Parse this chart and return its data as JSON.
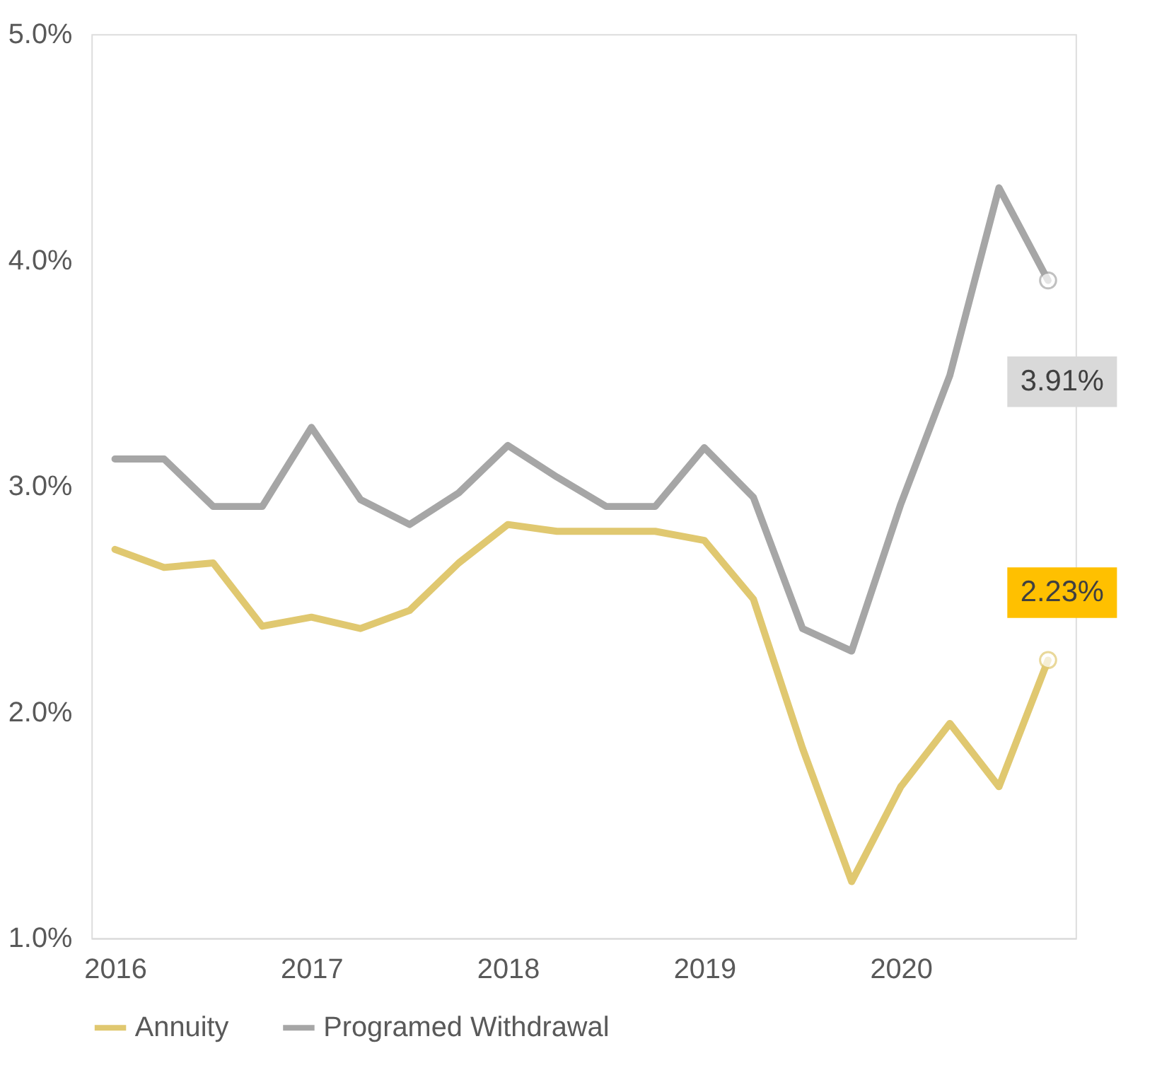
{
  "chart_data": {
    "type": "line",
    "x": [
      2016,
      2016.25,
      2016.5,
      2016.75,
      2017,
      2017.25,
      2017.5,
      2017.75,
      2018,
      2018.25,
      2018.5,
      2018.75,
      2019,
      2019.25,
      2019.5,
      2019.75,
      2020,
      2020.25,
      2020.5,
      2020.75
    ],
    "series": [
      {
        "name": "Annuity",
        "color": "#e0c870",
        "values": [
          2.72,
          2.64,
          2.66,
          2.38,
          2.42,
          2.37,
          2.45,
          2.66,
          2.83,
          2.8,
          2.8,
          2.8,
          2.76,
          2.5,
          1.84,
          1.25,
          1.67,
          1.95,
          1.67,
          2.23
        ],
        "value_labels": [
          null,
          null,
          null,
          null,
          null,
          null,
          null,
          null,
          null,
          null,
          null,
          null,
          null,
          null,
          null,
          null,
          null,
          null,
          null,
          "2.23%"
        ]
      },
      {
        "name": "Programed Withdrawal",
        "color": "#a6a6a6",
        "values": [
          3.12,
          3.12,
          2.91,
          2.91,
          3.26,
          2.94,
          2.83,
          2.97,
          3.18,
          3.04,
          2.91,
          2.91,
          3.17,
          2.95,
          2.37,
          2.27,
          2.92,
          3.49,
          4.32,
          3.91
        ],
        "value_labels": [
          null,
          null,
          null,
          null,
          null,
          null,
          null,
          null,
          null,
          null,
          null,
          null,
          null,
          null,
          null,
          null,
          null,
          null,
          null,
          "3.91%"
        ]
      }
    ],
    "xlim": [
      2015.88,
      2020.89
    ],
    "xticks": [
      2016,
      2017,
      2018,
      2019,
      2020
    ],
    "ylim": [
      1,
      5
    ],
    "yticks": [
      {
        "value": 1,
        "label": "1.0%"
      },
      {
        "value": 2,
        "label": "2.0%"
      },
      {
        "value": 3,
        "label": "3.0%"
      },
      {
        "value": 4,
        "label": "4.0%"
      },
      {
        "value": 5,
        "label": "5.0%"
      }
    ],
    "grid": false,
    "legend": "bottom",
    "line_style": "solid"
  }
}
